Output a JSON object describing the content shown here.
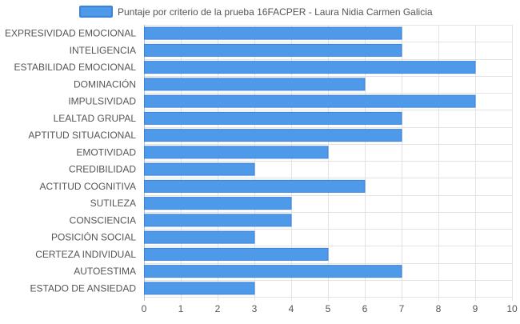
{
  "chart_data": {
    "type": "bar",
    "orientation": "horizontal",
    "categories": [
      "EXPRESIVIDAD EMOCIONAL",
      "INTELIGENCIA",
      "ESTABILIDAD EMOCIONAL",
      "DOMINACIÓN",
      "IMPULSIVIDAD",
      "LEALTAD GRUPAL",
      "APTITUD SITUACIONAL",
      "EMOTIVIDAD",
      "CREDIBILIDAD",
      "ACTITUD COGNITIVA",
      "SUTILEZA",
      "CONSCIENCIA",
      "POSICIÓN SOCIAL",
      "CERTEZA INDIVIDUAL",
      "AUTOESTIMA",
      "ESTADO DE ANSIEDAD"
    ],
    "series": [
      {
        "name": "Puntaje por criterio de la prueba 16FACPER - Laura Nidia Carmen Galicia",
        "values": [
          7,
          7,
          9,
          6,
          9,
          7,
          7,
          5,
          3,
          6,
          4,
          4,
          3,
          5,
          7,
          3
        ]
      }
    ],
    "xlim": [
      0,
      10
    ],
    "xticks": [
      "0",
      "1",
      "2",
      "3",
      "4",
      "5",
      "6",
      "7",
      "8",
      "9",
      "10"
    ],
    "grid": true,
    "legend_position": "top-center",
    "colors": {
      "bar_fill": "#4f9ae8",
      "bar_stroke": "#3b82dc",
      "grid": "#e3e3e3",
      "axis": "#bdbdbd",
      "text": "#555555"
    }
  }
}
